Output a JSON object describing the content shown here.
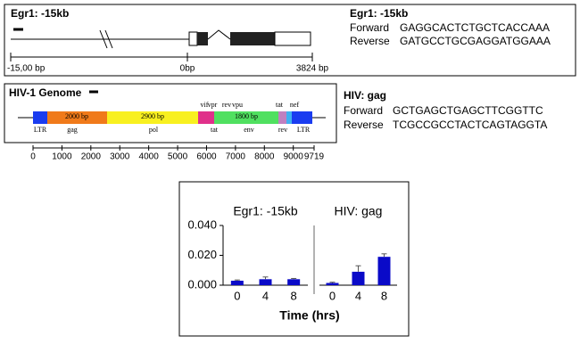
{
  "egr1_panel": {
    "title": "Egr1: -15kb",
    "left_label": "-15,00 bp",
    "mid_label": "0bp",
    "right_label": "3824 bp",
    "primer_title": "Egr1: -15kb",
    "forward_label": "Forward",
    "forward_seq": "GAGGCACTCTGCTCACCAAA",
    "reverse_label": "Reverse",
    "reverse_seq": "GATGCCTGCGAGGATGGAAA"
  },
  "hiv_panel": {
    "title": "HIV-1 Genome",
    "top_genes": [
      "vif",
      "vpr",
      "rev",
      "vpu",
      "tat",
      "nef"
    ],
    "bottom_genes": [
      "LTR",
      "gag",
      "pol",
      "tat",
      "env",
      "rev",
      "LTR"
    ],
    "segment_labels": [
      "2000 bp",
      "2900 bp",
      "1800 bp"
    ],
    "scale": [
      0,
      1000,
      2000,
      3000,
      4000,
      5000,
      6000,
      7000,
      8000,
      9000,
      9719
    ],
    "primer_title": "HIV: gag",
    "forward_label": "Forward",
    "forward_seq": "GCTGAGCTGAGCTTCGGTTC",
    "reverse_label": "Reverse",
    "reverse_seq": "TCGCCGCCTACTCAGTAGGTA"
  },
  "chart_data": [
    {
      "type": "bar",
      "title": "Egr1: -15kb",
      "xlabel": "Time (hrs)",
      "categories": [
        "0",
        "4",
        "8"
      ],
      "values": [
        0.003,
        0.004,
        0.004
      ],
      "errors": [
        0.0005,
        0.0015,
        0.0005
      ],
      "color": "#0a0ac8",
      "ylim": [
        0,
        0.04
      ],
      "yticks": [
        {
          "value": 0,
          "label": "0.000"
        },
        {
          "value": 0.02,
          "label": "0.020"
        },
        {
          "value": 0.04,
          "label": "0.040"
        }
      ]
    },
    {
      "type": "bar",
      "title": "HIV: gag",
      "categories": [
        "0",
        "4",
        "8"
      ],
      "values": [
        0.0015,
        0.009,
        0.019
      ],
      "errors": [
        0.0005,
        0.004,
        0.002
      ],
      "color": "#0a0ac8",
      "ylim": [
        0,
        0.04
      ]
    }
  ]
}
